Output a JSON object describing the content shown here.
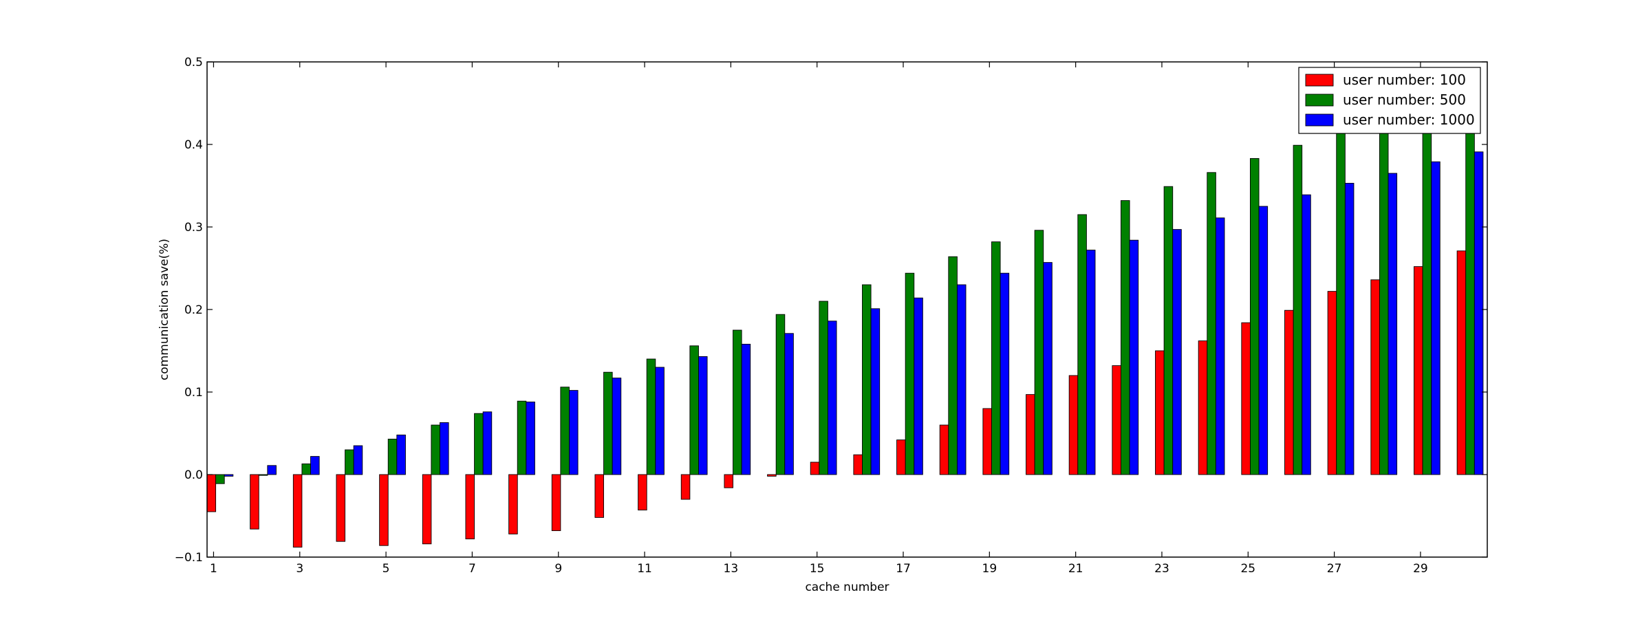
{
  "chart_data": {
    "type": "bar",
    "title": "",
    "xlabel": "cache number",
    "ylabel": "communication save(%)",
    "ylim": [
      -0.1,
      0.5
    ],
    "yticks": [
      "−0.1",
      "0.0",
      "0.1",
      "0.2",
      "0.3",
      "0.4",
      "0.5"
    ],
    "categories": [
      1,
      2,
      3,
      4,
      5,
      6,
      7,
      8,
      9,
      10,
      11,
      12,
      13,
      14,
      15,
      16,
      17,
      18,
      19,
      20,
      21,
      22,
      23,
      24,
      25,
      26,
      27,
      28,
      29,
      30
    ],
    "xtick_labels": [
      "1",
      "3",
      "5",
      "7",
      "9",
      "11",
      "13",
      "15",
      "17",
      "19",
      "21",
      "23",
      "25",
      "27",
      "29"
    ],
    "legend_position": "top-right",
    "grid": false,
    "series": [
      {
        "name": "user number: 100",
        "color": "#ff0000",
        "values": [
          -0.045,
          -0.066,
          -0.088,
          -0.081,
          -0.086,
          -0.084,
          -0.078,
          -0.072,
          -0.068,
          -0.052,
          -0.043,
          -0.03,
          -0.016,
          -0.002,
          0.015,
          0.024,
          0.042,
          0.06,
          0.08,
          0.097,
          0.12,
          0.132,
          0.15,
          0.162,
          0.184,
          0.199,
          0.222,
          0.236,
          0.252,
          0.271
        ]
      },
      {
        "name": "user number: 500",
        "color": "#008000",
        "values": [
          -0.011,
          -0.001,
          0.013,
          0.03,
          0.043,
          0.06,
          0.074,
          0.089,
          0.106,
          0.124,
          0.14,
          0.156,
          0.175,
          0.194,
          0.21,
          0.23,
          0.244,
          0.264,
          0.282,
          0.296,
          0.315,
          0.332,
          0.349,
          0.366,
          0.383,
          0.399,
          0.42,
          0.421,
          0.421,
          0.421
        ]
      },
      {
        "name": "user number: 1000",
        "color": "#0000ff",
        "values": [
          -0.002,
          0.011,
          0.022,
          0.035,
          0.048,
          0.063,
          0.076,
          0.088,
          0.102,
          0.117,
          0.13,
          0.143,
          0.158,
          0.171,
          0.186,
          0.201,
          0.214,
          0.23,
          0.244,
          0.257,
          0.272,
          0.284,
          0.297,
          0.311,
          0.325,
          0.339,
          0.353,
          0.365,
          0.379,
          0.391
        ]
      }
    ]
  }
}
